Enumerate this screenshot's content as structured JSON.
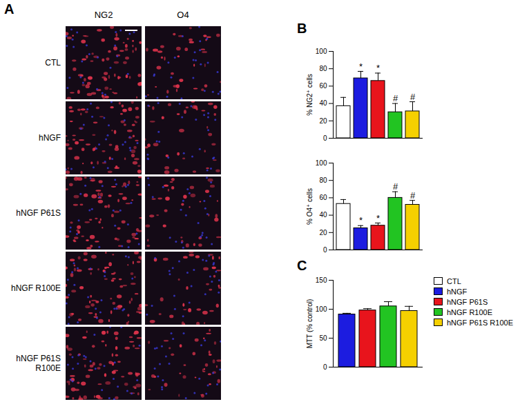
{
  "panels": [
    "A",
    "B",
    "C"
  ],
  "micrographs": {
    "columns": [
      "NG2",
      "O4"
    ],
    "rows": [
      "CTL",
      "hNGF",
      "hNGF P61S",
      "hNGF R100E",
      "hNGF P61S R100E"
    ]
  },
  "legend": {
    "position": "right",
    "items": [
      {
        "name": "CTL",
        "color": "#ffffff"
      },
      {
        "name": "hNGF",
        "color": "#1c1ce0"
      },
      {
        "name": "hNGF P61S",
        "color": "#e8141c"
      },
      {
        "name": "hNGF R100E",
        "color": "#22c422"
      },
      {
        "name": "hNGF P61S R100E",
        "color": "#f5d000"
      }
    ]
  },
  "chart_data": [
    {
      "type": "bar",
      "y_label": "% NG2⁺ cells",
      "categories": [
        "CTL",
        "hNGF",
        "hNGF P61S",
        "hNGF R100E",
        "hNGF P61S R100E"
      ],
      "values": [
        37,
        69,
        66,
        30,
        31
      ],
      "errors": [
        10,
        8,
        9,
        10,
        11
      ],
      "annotations": [
        null,
        "*",
        "*",
        "#",
        "#"
      ],
      "colors": [
        "#ffffff",
        "#1c1ce0",
        "#e8141c",
        "#22c422",
        "#f5d000"
      ],
      "ylim": [
        0,
        100
      ],
      "yticks": [
        0,
        20,
        40,
        60,
        80,
        100
      ],
      "tick_labels": "y",
      "grid": false
    },
    {
      "type": "bar",
      "y_label": "% O4⁺ cells",
      "categories": [
        "CTL",
        "hNGF",
        "hNGF P61S",
        "hNGF R100E",
        "hNGF P61S R100E"
      ],
      "values": [
        53,
        25,
        28,
        60,
        52
      ],
      "errors": [
        5,
        3,
        3,
        7,
        5
      ],
      "annotations": [
        null,
        "*",
        "*",
        "#",
        "#"
      ],
      "colors": [
        "#ffffff",
        "#1c1ce0",
        "#e8141c",
        "#22c422",
        "#f5d000"
      ],
      "ylim": [
        0,
        100
      ],
      "yticks": [
        0,
        20,
        40,
        60,
        80,
        100
      ],
      "tick_labels": "y",
      "grid": false
    },
    {
      "type": "bar",
      "y_label": "MTT (% control)",
      "categories": [
        "hNGF",
        "hNGF P61S",
        "hNGF R100E",
        "hNGF P61S R100E"
      ],
      "values": [
        91,
        98,
        105,
        97
      ],
      "errors": [
        2,
        3,
        8,
        8
      ],
      "colors": [
        "#1c1ce0",
        "#e8141c",
        "#22c422",
        "#f5d000"
      ],
      "ylim": [
        0,
        150
      ],
      "yticks": [
        0,
        50,
        100,
        150
      ],
      "tick_labels": "y",
      "grid": false
    }
  ]
}
